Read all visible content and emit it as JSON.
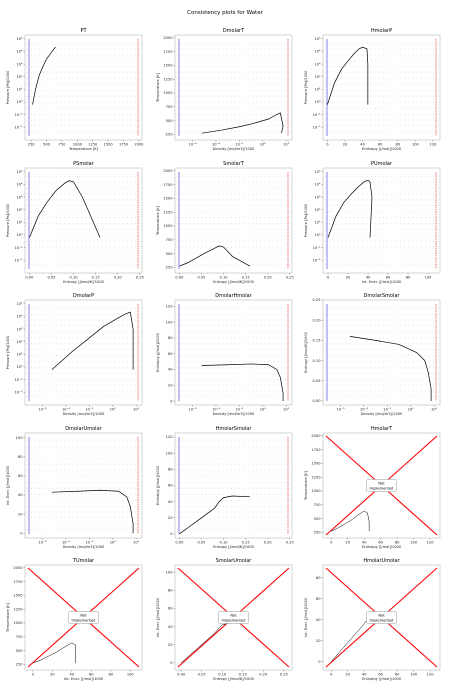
{
  "suptitle": "Consistency plots for Water",
  "colors": {
    "liquid": "#2b2bd9",
    "vapor": "#e01010",
    "saturation": "#000000",
    "isoline": "#444444",
    "not_implemented_x": "#ff0000"
  },
  "not_implemented_label": [
    "Not",
    "Implemented"
  ],
  "chart_data": [
    {
      "title": "PT",
      "type": "scatter",
      "xlabel": "Temperature [K]",
      "ylabel": "Pressure [Pa]/1000",
      "xlim": [
        150,
        2050
      ],
      "ylim": [
        -3,
        5.3
      ],
      "yscale": "log",
      "xticks": [
        250,
        500,
        750,
        1000,
        1250,
        1500,
        1750,
        2000
      ],
      "xticklabels": [
        "250",
        "500",
        "750",
        "1000",
        "1250",
        "1500",
        "1750",
        "2000"
      ],
      "yticks": [
        -2,
        -1,
        0,
        1,
        2,
        3,
        4,
        5
      ],
      "yticklabels": [
        "10⁻²",
        "10⁻¹",
        "10⁰",
        "10¹",
        "10²",
        "10³",
        "10⁴",
        "10⁵"
      ],
      "saturation_curve": {
        "x": [
          273,
          320,
          380,
          440,
          500,
          560,
          620,
          647
        ],
        "y": [
          -0.2,
          1.0,
          2.1,
          2.8,
          3.4,
          3.8,
          4.2,
          4.34
        ]
      }
    },
    {
      "title": "DmolarT",
      "type": "scatter",
      "xlabel": "Density [mol/m3]/1000",
      "ylabel": "Temperature [K]",
      "xlim": [
        -7.5,
        2.5
      ],
      "ylim": [
        150,
        2050
      ],
      "xscale": "log",
      "xticks": [
        -6,
        -4,
        -2,
        0,
        2
      ],
      "xticklabels": [
        "10⁻⁶",
        "10⁻⁴",
        "10⁻²",
        "10⁰",
        "10²"
      ],
      "yticks": [
        250,
        500,
        750,
        1000,
        1250,
        1500,
        1750,
        2000
      ],
      "yticklabels": [
        "250",
        "500",
        "750",
        "1000",
        "1250",
        "1500",
        "1750",
        "2000"
      ],
      "saturation_curve": {
        "x": [
          -5.2,
          -3.5,
          -2.0,
          -0.8,
          0.5,
          1.1,
          1.5,
          1.74,
          1.6
        ],
        "y": [
          273,
          330,
          390,
          450,
          530,
          600,
          640,
          400,
          273
        ]
      }
    },
    {
      "title": "HmolarP",
      "type": "scatter",
      "xlabel": "Enthalpy [J/mol]/1000",
      "ylabel": "Pressure [Pa]/1000",
      "xlim": [
        -5,
        128
      ],
      "ylim": [
        -3,
        5.3
      ],
      "yscale": "log",
      "xticks": [
        0,
        20,
        40,
        60,
        80,
        100,
        120
      ],
      "xticklabels": [
        "0",
        "20",
        "40",
        "60",
        "80",
        "100",
        "120"
      ],
      "yticks": [
        -2,
        -1,
        0,
        1,
        2,
        3,
        4,
        5
      ],
      "yticklabels": [
        "10⁻²",
        "10⁻¹",
        "10⁰",
        "10¹",
        "10²",
        "10³",
        "10⁴",
        "10⁵"
      ],
      "saturation_curve": {
        "x": [
          0,
          8,
          16,
          24,
          30,
          36,
          40,
          45,
          46,
          46
        ],
        "y": [
          -0.2,
          1.5,
          2.6,
          3.3,
          3.8,
          4.2,
          4.34,
          4.2,
          3.0,
          -0.2
        ]
      }
    },
    {
      "title": "PSmolar",
      "type": "scatter",
      "xlabel": "Entropy [J/mol/K]/1000",
      "ylabel": "Pressure [Pa]/1000",
      "xlim": [
        -0.01,
        0.255
      ],
      "ylim": [
        -3,
        5.3
      ],
      "yscale": "log",
      "xticks": [
        0,
        0.05,
        0.1,
        0.15,
        0.2,
        0.25
      ],
      "xticklabels": [
        "0.00",
        "0.05",
        "0.10",
        "0.15",
        "0.20",
        "0.25"
      ],
      "yticks": [
        -2,
        -1,
        0,
        1,
        2,
        3,
        4,
        5
      ],
      "yticklabels": [
        "10⁻²",
        "10⁻¹",
        "10⁰",
        "10¹",
        "10²",
        "10³",
        "10⁴",
        "10⁵"
      ],
      "saturation_curve": {
        "x": [
          0.0,
          0.02,
          0.04,
          0.06,
          0.08,
          0.09,
          0.1,
          0.12,
          0.16
        ],
        "y": [
          -0.2,
          1.5,
          2.6,
          3.5,
          4.1,
          4.3,
          4.2,
          3.0,
          -0.2
        ]
      }
    },
    {
      "title": "SmolarT",
      "type": "scatter",
      "xlabel": "Entropy [J/mol/K]/1000",
      "ylabel": "Temperature [K]",
      "xlim": [
        -0.01,
        0.255
      ],
      "ylim": [
        150,
        2050
      ],
      "xticks": [
        0,
        0.05,
        0.1,
        0.15,
        0.2,
        0.25
      ],
      "xticklabels": [
        "0.00",
        "0.05",
        "0.10",
        "0.15",
        "0.20",
        "0.25"
      ],
      "yticks": [
        250,
        500,
        750,
        1000,
        1250,
        1500,
        1750,
        2000
      ],
      "yticklabels": [
        "250",
        "500",
        "750",
        "1000",
        "1250",
        "1500",
        "1750",
        "2000"
      ],
      "saturation_curve": {
        "x": [
          0.0,
          0.02,
          0.04,
          0.06,
          0.08,
          0.09,
          0.1,
          0.12,
          0.16
        ],
        "y": [
          273,
          340,
          430,
          520,
          600,
          640,
          620,
          450,
          273
        ]
      }
    },
    {
      "title": "PUmolar",
      "type": "scatter",
      "xlabel": "Int. Ener. [J/mol]/1000",
      "ylabel": "Pressure [Pa]/1000",
      "xlim": [
        -5,
        112
      ],
      "ylim": [
        -3,
        5.3
      ],
      "yscale": "log",
      "xticks": [
        0,
        20,
        40,
        60,
        80,
        100
      ],
      "xticklabels": [
        "0",
        "20",
        "40",
        "60",
        "80",
        "100"
      ],
      "yticks": [
        -2,
        -1,
        0,
        1,
        2,
        3,
        4,
        5
      ],
      "yticklabels": [
        "10⁻²",
        "10⁻¹",
        "10⁰",
        "10¹",
        "10²",
        "10³",
        "10⁴",
        "10⁵"
      ],
      "saturation_curve": {
        "x": [
          0,
          8,
          16,
          24,
          30,
          36,
          40,
          42,
          44,
          42
        ],
        "y": [
          -0.2,
          1.5,
          2.6,
          3.3,
          3.8,
          4.2,
          4.34,
          4.2,
          3.0,
          -0.2
        ]
      }
    },
    {
      "title": "DmolarP",
      "type": "scatter",
      "xlabel": "Density [mol/m3]/1000",
      "ylabel": "Pressure [Pa]/1000",
      "xlim": [
        -7.5,
        2.5
      ],
      "ylim": [
        -3,
        5.3
      ],
      "xscale": "log",
      "yscale": "log",
      "xticks": [
        -6,
        -4,
        -2,
        0,
        2
      ],
      "xticklabels": [
        "10⁻⁶",
        "10⁻⁴",
        "10⁻²",
        "10⁰",
        "10²"
      ],
      "yticks": [
        -2,
        -1,
        0,
        1,
        2,
        3,
        4,
        5
      ],
      "yticklabels": [
        "10⁻²",
        "10⁻¹",
        "10⁰",
        "10¹",
        "10²",
        "10³",
        "10⁴",
        "10⁵"
      ],
      "saturation_curve": {
        "x": [
          -5.2,
          -3.5,
          -2.0,
          -0.8,
          0.5,
          1.1,
          1.5,
          1.74,
          1.74
        ],
        "y": [
          -0.2,
          1.2,
          2.3,
          3.2,
          3.9,
          4.2,
          4.34,
          3.0,
          -0.2
        ]
      }
    },
    {
      "title": "DmolarHmolar",
      "type": "scatter",
      "xlabel": "Density [mol/m3]/1000",
      "ylabel": "Enthalpy [J/mol]/1000",
      "xlim": [
        -7.5,
        2.5
      ],
      "ylim": [
        -5,
        128
      ],
      "xscale": "log",
      "xticks": [
        -6,
        -4,
        -2,
        0,
        2
      ],
      "xticklabels": [
        "10⁻⁶",
        "10⁻⁴",
        "10⁻²",
        "10⁰",
        "10²"
      ],
      "yticks": [
        0,
        20,
        40,
        60,
        80,
        100,
        120
      ],
      "yticklabels": [
        "0",
        "20",
        "40",
        "60",
        "80",
        "100",
        "120"
      ],
      "saturation_curve": {
        "x": [
          -5.2,
          -3.0,
          -1.0,
          0.5,
          1.2,
          1.5,
          1.74,
          1.74
        ],
        "y": [
          45,
          46,
          47,
          46,
          40,
          30,
          10,
          0
        ]
      }
    },
    {
      "title": "DmolarSmolar",
      "type": "scatter",
      "xlabel": "Density [mol/m3]/1000",
      "ylabel": "Entropy [J/mol/K]/1000",
      "xlim": [
        -7.5,
        2.5
      ],
      "ylim": [
        -0.01,
        0.25
      ],
      "xscale": "log",
      "xticks": [
        -6,
        -4,
        -2,
        0,
        2
      ],
      "xticklabels": [
        "10⁻⁶",
        "10⁻⁴",
        "10⁻²",
        "10⁰",
        "10²"
      ],
      "yticks": [
        0,
        0.05,
        0.1,
        0.15,
        0.2,
        0.25
      ],
      "yticklabels": [
        "0.00",
        "0.05",
        "0.10",
        "0.15",
        "0.20",
        "0.25"
      ],
      "saturation_curve": {
        "x": [
          -5.2,
          -3.0,
          -1.0,
          0.5,
          1.2,
          1.5,
          1.74,
          1.74
        ],
        "y": [
          0.16,
          0.15,
          0.14,
          0.12,
          0.1,
          0.07,
          0.03,
          0.0
        ]
      }
    },
    {
      "title": "DmolarUmolar",
      "type": "scatter",
      "xlabel": "Density [mol/m3]/1000",
      "ylabel": "Int. Ener. [J/mol]/1000",
      "xlim": [
        -7.5,
        2.5
      ],
      "ylim": [
        -5,
        105
      ],
      "xscale": "log",
      "xticks": [
        -6,
        -4,
        -2,
        0,
        2
      ],
      "xticklabels": [
        "10⁻⁶",
        "10⁻⁴",
        "10⁻²",
        "10⁰",
        "10²"
      ],
      "yticks": [
        0,
        20,
        40,
        60,
        80,
        100
      ],
      "yticklabels": [
        "0",
        "20",
        "40",
        "60",
        "80",
        "100"
      ],
      "saturation_curve": {
        "x": [
          -5.2,
          -3.0,
          -1.0,
          0.5,
          1.2,
          1.5,
          1.74,
          1.74
        ],
        "y": [
          43,
          44,
          45,
          44,
          38,
          28,
          10,
          0
        ]
      }
    },
    {
      "title": "HmolarSmolar",
      "type": "scatter",
      "xlabel": "Entropy [J/mol/K]/1000",
      "ylabel": "Enthalpy [J/mol]/1000",
      "xlim": [
        -0.01,
        0.255
      ],
      "ylim": [
        -5,
        125
      ],
      "xticks": [
        0,
        0.05,
        0.1,
        0.15,
        0.2,
        0.25
      ],
      "xticklabels": [
        "0.00",
        "0.05",
        "0.10",
        "0.15",
        "0.20",
        "0.25"
      ],
      "yticks": [
        0,
        20,
        40,
        60,
        80,
        100,
        120
      ],
      "yticklabels": [
        "0",
        "20",
        "40",
        "60",
        "80",
        "100",
        "120"
      ],
      "saturation_curve": {
        "x": [
          0.0,
          0.02,
          0.04,
          0.06,
          0.08,
          0.09,
          0.1,
          0.12,
          0.16
        ],
        "y": [
          0,
          8,
          16,
          24,
          32,
          40,
          45,
          47,
          46
        ]
      }
    },
    {
      "title": "HmolarT",
      "type": "not_implemented",
      "xlabel": "Enthalpy [J/mol]/1000",
      "ylabel": "Temperature [K]",
      "xlim": [
        -10,
        132
      ],
      "ylim": [
        150,
        2050
      ],
      "xticks": [
        0,
        20,
        40,
        60,
        80,
        100,
        120
      ],
      "xticklabels": [
        "0",
        "20",
        "40",
        "60",
        "80",
        "100",
        "120"
      ],
      "yticks": [
        250,
        500,
        750,
        1000,
        1250,
        1500,
        1750,
        2000
      ],
      "yticklabels": [
        "250",
        "500",
        "750",
        "1000",
        "1250",
        "1500",
        "1750",
        "2000"
      ],
      "saturation_curve": {
        "x": [
          0,
          8,
          16,
          24,
          32,
          40,
          44,
          46,
          46
        ],
        "y": [
          273,
          330,
          400,
          470,
          560,
          640,
          600,
          450,
          273
        ]
      }
    },
    {
      "title": "TUmolar",
      "type": "not_implemented",
      "xlabel": "Int. Ener. [J/mol]/1000",
      "ylabel": "Temperature [K]",
      "xlim": [
        -8,
        112
      ],
      "ylim": [
        150,
        2050
      ],
      "xticks": [
        0,
        20,
        40,
        60,
        80,
        100
      ],
      "xticklabels": [
        "0",
        "20",
        "40",
        "60",
        "80",
        "100"
      ],
      "yticks": [
        250,
        500,
        750,
        1000,
        1250,
        1500,
        1750,
        2000
      ],
      "yticklabels": [
        "250",
        "500",
        "750",
        "1000",
        "1250",
        "1500",
        "1750",
        "2000"
      ],
      "saturation_curve": {
        "x": [
          0,
          8,
          16,
          24,
          32,
          40,
          44,
          44,
          44
        ],
        "y": [
          273,
          330,
          400,
          470,
          560,
          640,
          600,
          450,
          273
        ]
      }
    },
    {
      "title": "SmolarUmolar",
      "type": "not_implemented",
      "xlabel": "Entropy [J/mol/K]/1000",
      "ylabel": "Int. Ener. [J/mol]/1000",
      "xlim": [
        -0.015,
        0.27
      ],
      "ylim": [
        -8,
        108
      ],
      "xticks": [
        0,
        0.05,
        0.1,
        0.15,
        0.2,
        0.25
      ],
      "xticklabels": [
        "0.00",
        "0.05",
        "0.10",
        "0.15",
        "0.20",
        "0.25"
      ],
      "yticks": [
        0,
        20,
        40,
        60,
        80,
        100
      ],
      "yticklabels": [
        "0",
        "20",
        "40",
        "60",
        "80",
        "100"
      ],
      "saturation_curve": {
        "x": [
          0.0,
          0.04,
          0.08,
          0.1,
          0.12,
          0.16
        ],
        "y": [
          0,
          16,
          32,
          42,
          44,
          44
        ]
      }
    },
    {
      "title": "HmolarUmolar",
      "type": "not_implemented",
      "xlabel": "Enthalpy [J/mol]/1000",
      "ylabel": "Int. Ener. [J/mol]/1000",
      "xlim": [
        -10,
        132
      ],
      "ylim": [
        -8,
        92
      ],
      "xticks": [
        0,
        20,
        40,
        60,
        80,
        100,
        120
      ],
      "xticklabels": [
        "0",
        "20",
        "40",
        "60",
        "80",
        "100",
        "120"
      ],
      "yticks": [
        0,
        20,
        40,
        60,
        80
      ],
      "yticklabels": [
        "0",
        "20",
        "40",
        "60",
        "80"
      ],
      "saturation_curve": {
        "x": [
          0,
          10,
          20,
          30,
          40,
          46
        ],
        "y": [
          0,
          9,
          18,
          27,
          36,
          42
        ]
      }
    }
  ]
}
